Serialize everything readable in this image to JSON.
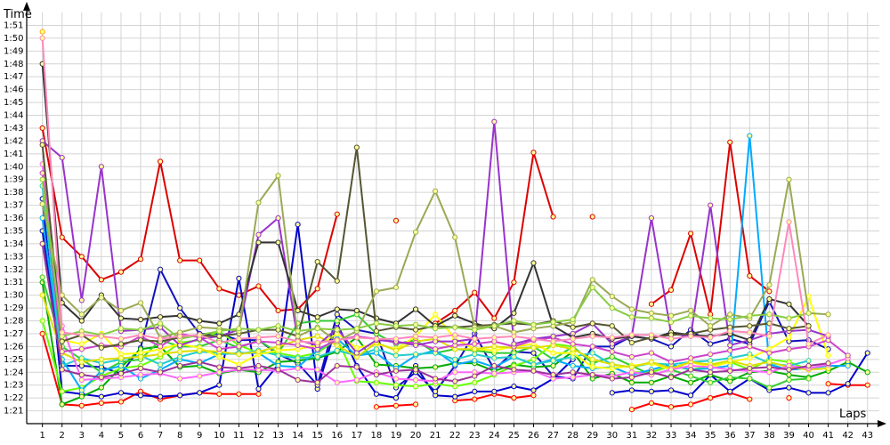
{
  "chart_data": {
    "type": "line",
    "title": "",
    "xlabel": "Laps",
    "ylabel": "Time",
    "x_ticks": [
      "1",
      "2",
      "3",
      "4",
      "5",
      "6",
      "7",
      "8",
      "9",
      "10",
      "11",
      "12",
      "13",
      "14",
      "15",
      "16",
      "17",
      "18",
      "19",
      "20",
      "21",
      "22",
      "23",
      "24",
      "25",
      "26",
      "27",
      "28",
      "29",
      "30",
      "31",
      "32",
      "33",
      "34",
      "35",
      "36",
      "37",
      "38",
      "39",
      "40",
      "41",
      "42",
      "43"
    ],
    "y_ticks": [
      "1:21",
      "1:22",
      "1:23",
      "1:24",
      "1:25",
      "1:26",
      "1:27",
      "1:28",
      "1:29",
      "1:30",
      "1:31",
      "1:32",
      "1:33",
      "1:34",
      "1:35",
      "1:36",
      "1:37",
      "1:38",
      "1:39",
      "1:40",
      "1:41",
      "1:42",
      "1:43",
      "1:44",
      "1:45",
      "1:46",
      "1:47",
      "1:48",
      "1:49",
      "1:50",
      "1:51"
    ],
    "y_unit": "seconds",
    "ylim": [
      80,
      112
    ],
    "xlim": [
      0.2,
      43.6
    ],
    "grid": true,
    "series": [
      {
        "color": "#ff0000",
        "values": [
          87,
          81.5,
          81.4,
          81.6,
          81.7,
          82.5,
          81.9,
          82.2,
          82.4,
          82.3,
          82.3,
          82.3,
          null,
          null,
          null,
          null,
          null,
          81.3,
          81.4,
          81.5,
          null,
          81.8,
          81.9,
          82.3,
          82,
          82.2,
          null,
          null,
          null,
          null,
          81.1,
          81.6,
          81.3,
          81.5,
          82,
          82.4,
          81.9,
          null,
          82,
          null,
          83.1,
          83,
          83
        ]
      },
      {
        "color": "#dd0000",
        "values": [
          103,
          94.5,
          93,
          91.2,
          91.8,
          92.8,
          100.4,
          92.7,
          92.7,
          90.5,
          90,
          90.7,
          88.8,
          88.9,
          90.5,
          96.3,
          null,
          null,
          95.8,
          null,
          87.8,
          88.8,
          90.2,
          88.2,
          91,
          101.1,
          96.1,
          null,
          96.1,
          null,
          null,
          89.3,
          90.4,
          94.8,
          88.5,
          101.9,
          91.5,
          90.3,
          null,
          null,
          null,
          null,
          null
        ]
      },
      {
        "color": "#0000cc",
        "values": [
          97.5,
          82.5,
          82.3,
          82.1,
          82.4,
          82.2,
          82.1,
          82.2,
          82.4,
          83,
          91.3,
          82.7,
          84.6,
          95.5,
          82.7,
          87.8,
          84.5,
          82.3,
          82,
          84.5,
          82.2,
          82.1,
          82.5,
          82.5,
          82.9,
          82.6,
          83.5,
          85,
          null,
          82.4,
          82.6,
          82.5,
          82.6,
          82.2,
          83.8,
          82.5,
          83.5,
          82.6,
          82.8,
          82.4,
          82.4,
          83.1,
          85.5
        ]
      },
      {
        "color": "#1111bb",
        "values": [
          95,
          84.5,
          84.5,
          84.4,
          83.9,
          85.9,
          92,
          89,
          87,
          87,
          86.5,
          86.5,
          85.4,
          84.7,
          83,
          88.5,
          87.3,
          87,
          82.8,
          84,
          82.5,
          84.5,
          87,
          84.2,
          85.6,
          85.5,
          83.7,
          83.5,
          86,
          86,
          86.8,
          86.6,
          86,
          87.3,
          86.2,
          86.6,
          86.2,
          89.5,
          86.4,
          86.5,
          85.8,
          null,
          null
        ]
      },
      {
        "color": "#00aa00",
        "values": [
          91,
          81.5,
          82.1,
          82.8,
          84.4,
          85.8,
          86,
          84.4,
          84.5,
          83.9,
          84.2,
          84,
          84.8,
          84.9,
          85.1,
          85.6,
          86.7,
          84.6,
          84.5,
          84.3,
          84.4,
          84.7,
          84.7,
          84.1,
          84.6,
          84.4,
          84.5,
          85.6,
          83.5,
          83.9,
          83.2,
          83.2,
          83.7,
          83.2,
          83.8,
          83.3,
          84,
          84.1,
          83.8,
          83.6,
          84.1,
          84.8,
          84
        ]
      },
      {
        "color": "#33cc33",
        "values": [
          91.4,
          86,
          85,
          84,
          84.8,
          85,
          86.5,
          86,
          86,
          86.5,
          85.9,
          86.5,
          85.5,
          87.8,
          88,
          88,
          88.5,
          87,
          86.2,
          86.5,
          85.5,
          85.8,
          85.7,
          85.5,
          85.5,
          86,
          85,
          86,
          84.7,
          85.2,
          84.5,
          83.8,
          84.2,
          83.7,
          83.2,
          83.6,
          83.5,
          82.8,
          83.4,
          83.5,
          null,
          null,
          null
        ]
      },
      {
        "color": "#66ff00",
        "values": [
          88,
          82.5,
          82.8,
          83.7,
          84.3,
          84.5,
          85.2,
          86.3,
          86.5,
          87.2,
          86.1,
          85.5,
          85.5,
          85.2,
          85.5,
          86.6,
          83.3,
          83.2,
          83,
          82.9,
          83.1,
          82.9,
          83.2,
          83.8,
          84.5,
          85,
          86.2,
          86,
          null,
          null,
          84,
          84,
          84.5,
          84.2,
          84.5,
          84.8,
          84.2,
          85,
          84.8,
          84.2,
          84.7,
          null,
          null
        ]
      },
      {
        "color": "#00aaff",
        "values": [
          96,
          85,
          82.6,
          84.1,
          84.5,
          83.5,
          84.2,
          85,
          84.7,
          85.4,
          85.5,
          85.5,
          84.5,
          84.4,
          85.7,
          86.6,
          85.3,
          85.5,
          84.3,
          85.3,
          85.7,
          84.6,
          84.9,
          84.4,
          85.2,
          84.6,
          85,
          84.5,
          84.3,
          84.4,
          83.8,
          84.2,
          84.6,
          84.2,
          84.3,
          84.5,
          102.4,
          84.6,
          84.2,
          84.3,
          84.5,
          84.5,
          null
        ]
      },
      {
        "color": "#22cccc",
        "values": [
          98.5,
          84.5,
          85.1,
          84.7,
          85,
          85.3,
          84.6,
          85.2,
          85.6,
          85.5,
          85.4,
          85.7,
          85.3,
          85.1,
          85.2,
          85.7,
          85.3,
          85.8,
          85.3,
          85.4,
          85.5,
          85,
          85.4,
          85.1,
          85.2,
          84.6,
          84.9,
          85.2,
          85.5,
          84.6,
          84.4,
          84.7,
          84.6,
          84.8,
          84.9,
          85.1,
          85.4,
          84.7,
          84.5,
          84.9,
          null,
          null,
          null
        ]
      },
      {
        "color": "#ffff00",
        "values": [
          99,
          86.5,
          86.2,
          87,
          85.4,
          85.5,
          85.8,
          86.2,
          85.9,
          85.2,
          84.6,
          85.4,
          85.7,
          85.8,
          86.1,
          87,
          85.9,
          86.2,
          85.8,
          86.8,
          88.5,
          86.6,
          85.8,
          85.7,
          86,
          86.2,
          85.5,
          85.5,
          84.4,
          84.3,
          84.5,
          84.7,
          84.2,
          84.8,
          84.4,
          84.8,
          85.1,
          85.8,
          86.7,
          89.9,
          85.3,
          null,
          null
        ]
      },
      {
        "color": "#dddd00",
        "values": [
          90,
          85.5,
          84.8,
          85,
          85.1,
          85.2,
          85.4,
          85.6,
          85.7,
          85.6,
          85.4,
          85.6,
          86,
          86.5,
          86.8,
          86.1,
          85.2,
          86.3,
          85.7,
          86.4,
          86.6,
          85.8,
          85.8,
          86,
          85.9,
          85.9,
          86.1,
          85.8,
          85,
          84.6,
          84.4,
          84.8,
          84.3,
          84.8,
          84.6,
          84.9,
          84.5,
          84.8,
          84.4,
          84.2,
          84.3,
          null,
          null
        ]
      },
      {
        "color": "#ff66ff",
        "values": [
          100.2,
          87.6,
          83.4,
          83.5,
          83.6,
          83.8,
          83.9,
          83.5,
          83.7,
          84,
          84.2,
          84.2,
          84.1,
          84.3,
          84.2,
          83.2,
          83.4,
          84,
          83.5,
          83.4,
          83.3,
          84,
          84,
          83.9,
          84,
          84.1,
          83.5,
          83.6,
          83.8,
          83.7,
          84,
          83.8,
          84.2,
          84.5,
          84.4,
          84.2,
          84.1,
          84,
          84.5,
          84.3,
          84.6,
          85.1,
          null
        ]
      },
      {
        "color": "#cc44cc",
        "values": [
          99.5,
          85.6,
          85.8,
          86.1,
          86,
          86.8,
          86,
          87,
          86.7,
          85.8,
          86,
          86.4,
          86.3,
          86.1,
          85.8,
          86.5,
          86.8,
          86.6,
          86.3,
          86.3,
          85.8,
          86.1,
          86.2,
          86.4,
          86,
          86.5,
          86.7,
          86.2,
          86,
          85.6,
          85.2,
          85.5,
          84.8,
          85.1,
          85.4,
          85.7,
          86,
          85.5,
          85.8,
          86,
          86.5,
          85.3,
          null
        ]
      },
      {
        "color": "#9933cc",
        "values": [
          102,
          100.7,
          89.6,
          100,
          87.2,
          87.3,
          87.5,
          86.1,
          86.6,
          86.8,
          87.3,
          94.7,
          96,
          86.5,
          86.1,
          87.4,
          85.5,
          86.5,
          86.4,
          86.1,
          86.4,
          86.4,
          86.6,
          103.5,
          86.2,
          86.6,
          86.8,
          87,
          87.8,
          86.2,
          86.8,
          96,
          87,
          86.8,
          97,
          86.1,
          86.5,
          87,
          87.2,
          87.3,
          86.8,
          null,
          null
        ]
      },
      {
        "color": "#993399",
        "values": [
          94,
          84.2,
          83.8,
          83.6,
          83.9,
          84.3,
          84,
          84.5,
          84.8,
          84.4,
          84.3,
          84.5,
          84.2,
          83.4,
          83.2,
          84.5,
          84.4,
          83.8,
          84.1,
          84.2,
          83.5,
          83.3,
          83.7,
          84.5,
          84.2,
          84.1,
          83.8,
          84,
          83.8,
          83.5,
          83.6,
          84,
          83.6,
          84.2,
          84,
          84.1,
          84.3,
          84.4,
          84.2,
          84.5,
          84.7,
          null,
          null
        ]
      },
      {
        "color": "#333333",
        "values": [
          108,
          89.4,
          88,
          90,
          88.2,
          88.1,
          88.3,
          88.4,
          88,
          87.8,
          88.5,
          94.1,
          94.1,
          88.8,
          88.3,
          88.9,
          88.8,
          88.2,
          87.8,
          88.9,
          87.6,
          88.4,
          87.8,
          87.4,
          88.6,
          92.5,
          87.6,
          86.7,
          87,
          86.6,
          86.8,
          86.6,
          87.1,
          86.9,
          86.8,
          87,
          86.5,
          89.7,
          89.3,
          87.6,
          null,
          null,
          null
        ]
      },
      {
        "color": "#555533",
        "values": [
          101.7,
          86.4,
          86.9,
          85.9,
          86.2,
          86.5,
          86.4,
          86.7,
          86.9,
          86.8,
          87,
          87.3,
          87.3,
          86.8,
          92.6,
          91.1,
          101.5,
          87.2,
          87.5,
          87.3,
          87.6,
          87.5,
          87.6,
          87.7,
          87.8,
          87.7,
          88,
          87.5,
          87.8,
          87.6,
          86.3,
          86.7,
          86.9,
          87,
          87.3,
          87.5,
          87.6,
          87.8,
          87.4,
          87.6,
          null,
          null,
          null
        ]
      },
      {
        "color": "#99aa55",
        "values": [
          97.1,
          90,
          88.5,
          89.8,
          88.8,
          89.4,
          86.7,
          87.1,
          87.5,
          87.4,
          87.2,
          97.2,
          99.3,
          86.8,
          87.5,
          86.4,
          87.2,
          90.3,
          90.6,
          94.9,
          98.1,
          94.5,
          87.5,
          87.6,
          87.1,
          87.4,
          87.6,
          87.9,
          91.2,
          89.9,
          88.9,
          88.6,
          88.4,
          88.8,
          87.6,
          88.5,
          88.2,
          90.8,
          99,
          88.6,
          88.5,
          null,
          null
        ]
      },
      {
        "color": "#88cc44",
        "values": [
          99,
          86.8,
          87.2,
          86.9,
          87.4,
          87.3,
          87.8,
          86.6,
          86.9,
          87.2,
          87.4,
          87.3,
          87.6,
          87.2,
          87.4,
          87.3,
          87.4,
          87.8,
          87.6,
          87.7,
          87.4,
          87.5,
          87.3,
          87.6,
          88,
          87.7,
          87.9,
          88.1,
          90.6,
          89,
          88.3,
          88.2,
          87.9,
          88.4,
          88.2,
          88.1,
          88.4,
          88.5,
          88.2,
          88.6,
          null,
          null,
          null
        ]
      },
      {
        "color": "#ff88bb",
        "values": [
          110,
          87.1,
          86.9,
          86.8,
          86.6,
          86.9,
          86.6,
          86.8,
          86.9,
          86.3,
          86.6,
          86.7,
          86.8,
          86.4,
          86.3,
          86.5,
          86.7,
          86.6,
          86.6,
          86.8,
          86.7,
          86.9,
          86.6,
          86.7,
          86.8,
          86.6,
          86.4,
          86.6,
          86.8,
          86.7,
          86.9,
          86.9,
          86.6,
          86.8,
          86.7,
          87.2,
          87.1,
          86.8,
          95.7,
          86.2,
          86.9,
          null,
          null
        ]
      },
      {
        "color": "#ffaa00",
        "values": [
          110.5,
          null,
          null,
          null,
          null,
          null,
          null,
          null,
          null,
          null,
          null,
          null,
          null,
          null,
          null,
          null,
          null,
          null,
          null,
          null,
          null,
          null,
          null,
          null,
          null,
          null,
          null,
          null,
          null,
          null,
          null,
          null,
          null,
          null,
          null,
          null,
          null,
          null,
          null,
          null,
          null,
          null,
          null
        ]
      }
    ]
  }
}
